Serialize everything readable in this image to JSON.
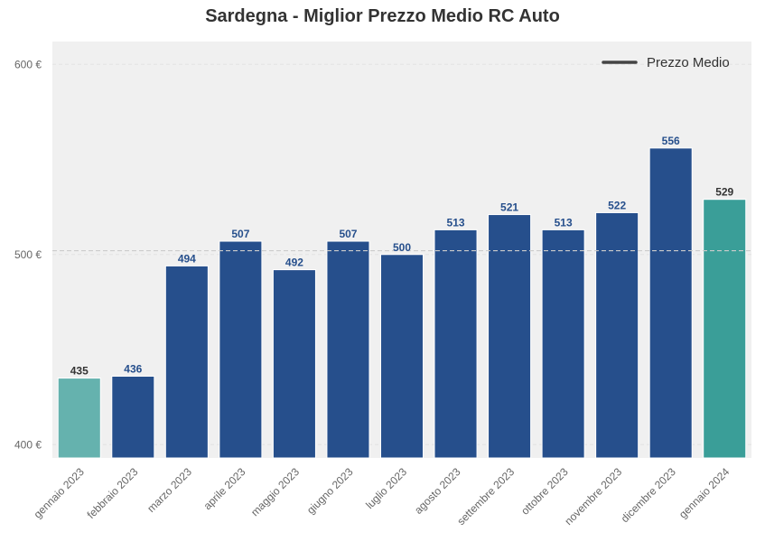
{
  "chart_data": {
    "type": "bar",
    "title": "Sardegna - Miglior Prezzo Medio RC Auto",
    "xlabel": "",
    "ylabel": "",
    "y_tick_labels": [
      "400 €",
      "500 €",
      "600 €"
    ],
    "y_ticks": [
      400,
      500,
      600
    ],
    "ylim": [
      393,
      612
    ],
    "categories": [
      "gennaio 2023",
      "febbraio 2023",
      "marzo 2023",
      "aprile 2023",
      "maggio 2023",
      "giugno 2023",
      "luglio 2023",
      "agosto 2023",
      "settembre 2023",
      "ottobre 2023",
      "novembre 2023",
      "dicembre 2023",
      "gennaio 2024"
    ],
    "values": [
      435,
      436,
      494,
      507,
      492,
      507,
      500,
      513,
      521,
      513,
      522,
      556,
      529
    ],
    "value_labels": [
      "435",
      "436",
      "494",
      "507",
      "492",
      "507",
      "500",
      "513",
      "521",
      "513",
      "522",
      "556",
      "529"
    ],
    "average_line": 502,
    "legend": {
      "label": "Prezzo Medio",
      "position": "top-right"
    },
    "grid": true,
    "colors": {
      "bar_default": "#264f8c",
      "bar_first": "#65b2ae",
      "bar_last": "#3a9e98",
      "label_default": "#264f8c",
      "label_highlight": "#333333",
      "background": "#f0f0f0",
      "average_line": "#cccccc",
      "legend_line": "#444444"
    }
  }
}
